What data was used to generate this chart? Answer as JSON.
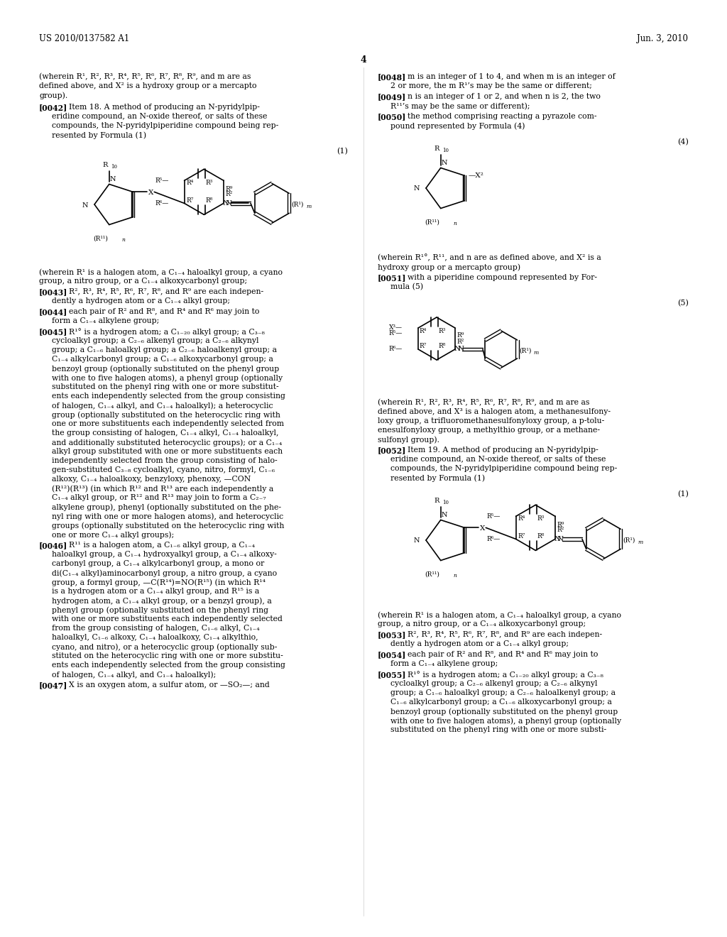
{
  "background_color": "#ffffff",
  "page_number": "4",
  "header_left": "US 2010/0137582 A1",
  "header_right": "Jun. 3, 2010"
}
